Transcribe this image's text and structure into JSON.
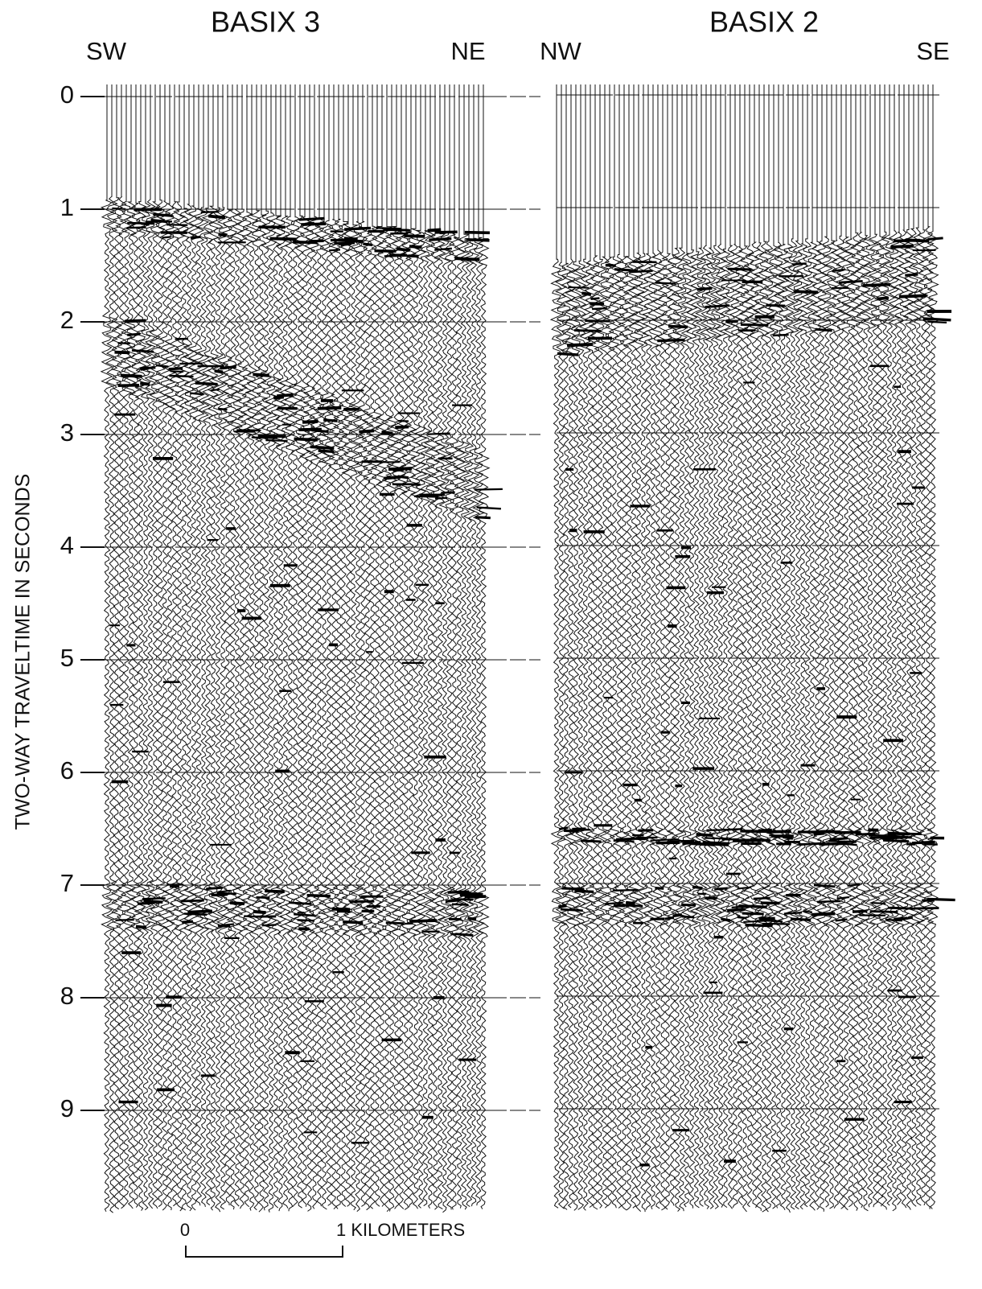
{
  "panels": [
    {
      "title": "BASIX 3",
      "left": "SW",
      "right": "NE"
    },
    {
      "title": "BASIX 2",
      "left": "NW",
      "right": "SE"
    }
  ],
  "y_axis": {
    "label": "TWO-WAY TRAVELTIME IN SECONDS",
    "ticks": [
      0,
      1,
      2,
      3,
      4,
      5,
      6,
      7,
      8,
      9
    ]
  },
  "scale_bar": {
    "start": "0",
    "end": "1 KILOMETERS"
  }
}
